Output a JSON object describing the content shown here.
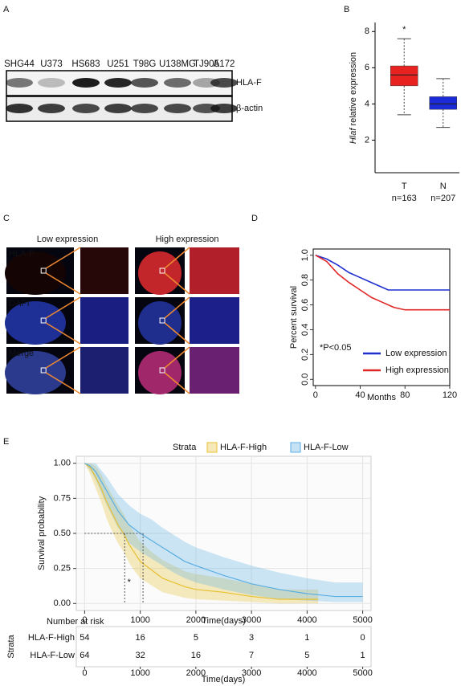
{
  "panel_labels": [
    "A",
    "B",
    "C",
    "D",
    "E"
  ],
  "blot": {
    "lanes": [
      "SHG44",
      "U373",
      "HS683",
      "U251",
      "T98G",
      "U138MG",
      "TJ905",
      "A172"
    ],
    "rows": [
      "HLA-F",
      "β-actin"
    ]
  },
  "images": {
    "columns": [
      "Low expression",
      "High expression"
    ],
    "rows": [
      "HLA-F",
      "DAPI",
      "Merge"
    ]
  },
  "chart_data": [
    {
      "type": "box",
      "ylabel_gene": "Hlaf",
      "ylabel": "relative expression",
      "categories": [
        "T",
        "N"
      ],
      "sublabels": [
        "n=163",
        "n=207"
      ],
      "boxes": [
        {
          "whislo": 3.4,
          "q1": 5.0,
          "med": 5.6,
          "q3": 6.1,
          "whishi": 7.6,
          "color": "#e8231f"
        },
        {
          "whislo": 2.7,
          "q1": 3.7,
          "med": 4.0,
          "q3": 4.4,
          "whishi": 5.4,
          "color": "#1c2bd9"
        }
      ],
      "annotation": {
        "text": "*",
        "category": 0,
        "y": 8.1
      },
      "ylim": [
        0.2,
        8.5
      ],
      "yticks": [
        2,
        4,
        6,
        8
      ]
    },
    {
      "type": "line",
      "ylabel": "Percent survival",
      "xlabel": "Months",
      "annotation": "*P<0.05",
      "legend": "lower-right",
      "series": [
        {
          "name": "Low expression",
          "color": "#1f2fd0",
          "x": [
            0,
            10,
            20,
            30,
            40,
            50,
            60,
            65,
            120
          ],
          "values": [
            1,
            0.97,
            0.92,
            0.86,
            0.82,
            0.78,
            0.74,
            0.72,
            0.72
          ]
        },
        {
          "name": "High expression",
          "color": "#e02626",
          "x": [
            0,
            10,
            20,
            30,
            40,
            50,
            60,
            70,
            80,
            120
          ],
          "values": [
            1,
            0.95,
            0.85,
            0.78,
            0.72,
            0.66,
            0.62,
            0.58,
            0.56,
            0.56
          ]
        }
      ],
      "xlim": [
        -2,
        120
      ],
      "xticks": [
        0,
        40,
        80,
        120
      ],
      "ylim": [
        -0.05,
        1.05
      ],
      "yticks": [
        {
          "value": 0,
          "label": "0.0"
        },
        {
          "value": 0.2,
          "label": "0.2"
        },
        {
          "value": 0.4,
          "label": "0.4"
        },
        {
          "value": 0.6,
          "label": "0.6"
        },
        {
          "value": 0.8,
          "label": "0.8"
        },
        {
          "value": 1,
          "label": "1.0"
        }
      ]
    },
    {
      "type": "line",
      "legend_title": "Strata",
      "ylabel": "Survival probability",
      "xlabel": "Time(days)",
      "annotation": {
        "text": "*",
        "x": 800,
        "y": 0.15
      },
      "median_y": 0.5,
      "grid": true,
      "series": [
        {
          "name": "HLA-F-High",
          "color": "#e6c030",
          "median": 720,
          "x": [
            0,
            100,
            200,
            300,
            400,
            500,
            600,
            700,
            800,
            900,
            1000,
            1200,
            1400,
            1600,
            1800,
            2000,
            2500,
            3000,
            3500,
            4200
          ],
          "values": [
            1,
            0.97,
            0.9,
            0.82,
            0.72,
            0.64,
            0.56,
            0.5,
            0.42,
            0.36,
            0.3,
            0.24,
            0.18,
            0.15,
            0.12,
            0.1,
            0.08,
            0.05,
            0.03,
            0.03
          ],
          "lower": [
            1,
            0.92,
            0.82,
            0.72,
            0.6,
            0.51,
            0.43,
            0.37,
            0.29,
            0.23,
            0.18,
            0.13,
            0.08,
            0.06,
            0.04,
            0.03,
            0.02,
            0.01,
            0,
            0
          ],
          "upper": [
            1,
            1,
            0.98,
            0.92,
            0.84,
            0.77,
            0.7,
            0.64,
            0.56,
            0.5,
            0.44,
            0.37,
            0.31,
            0.27,
            0.23,
            0.21,
            0.18,
            0.14,
            0.1,
            0.1
          ]
        },
        {
          "name": "HLA-F-Low",
          "color": "#5aaee3",
          "median": 1050,
          "x": [
            0,
            100,
            200,
            300,
            400,
            500,
            600,
            800,
            1000,
            1200,
            1400,
            1600,
            1800,
            2000,
            2500,
            3000,
            3500,
            4000,
            4500,
            5000
          ],
          "values": [
            1,
            0.98,
            0.94,
            0.87,
            0.8,
            0.73,
            0.66,
            0.56,
            0.5,
            0.45,
            0.4,
            0.35,
            0.3,
            0.27,
            0.2,
            0.14,
            0.1,
            0.07,
            0.05,
            0.05
          ],
          "lower": [
            1,
            0.95,
            0.88,
            0.79,
            0.7,
            0.62,
            0.54,
            0.43,
            0.37,
            0.32,
            0.27,
            0.22,
            0.18,
            0.15,
            0.1,
            0.06,
            0.03,
            0.02,
            0.01,
            0.01
          ],
          "upper": [
            1,
            1,
            1,
            0.95,
            0.9,
            0.84,
            0.78,
            0.7,
            0.64,
            0.6,
            0.54,
            0.49,
            0.44,
            0.4,
            0.33,
            0.27,
            0.22,
            0.18,
            0.15,
            0.15
          ]
        }
      ],
      "xlim": [
        -150,
        5150
      ],
      "xticks": [
        0,
        1000,
        2000,
        3000,
        4000,
        5000
      ],
      "ylim": [
        -0.05,
        1.05
      ],
      "yticks": [
        {
          "value": 0,
          "label": "0.00"
        },
        {
          "value": 0.25,
          "label": "0.25"
        },
        {
          "value": 0.5,
          "label": "0.50"
        },
        {
          "value": 0.75,
          "label": "0.75"
        },
        {
          "value": 1,
          "label": "1.00"
        }
      ]
    }
  ],
  "risk_table": {
    "title": "Number at risk",
    "side_label": "Strata",
    "xlabel": "Time(days)",
    "xticks": [
      0,
      1000,
      2000,
      3000,
      4000,
      5000
    ],
    "rows": [
      {
        "name": "HLA-F-High",
        "color": "#e6c030",
        "values": [
          54,
          16,
          5,
          3,
          1,
          0
        ]
      },
      {
        "name": "HLA-F-Low",
        "color": "#3a9ad6",
        "values": [
          64,
          32,
          16,
          7,
          5,
          1
        ]
      }
    ]
  }
}
